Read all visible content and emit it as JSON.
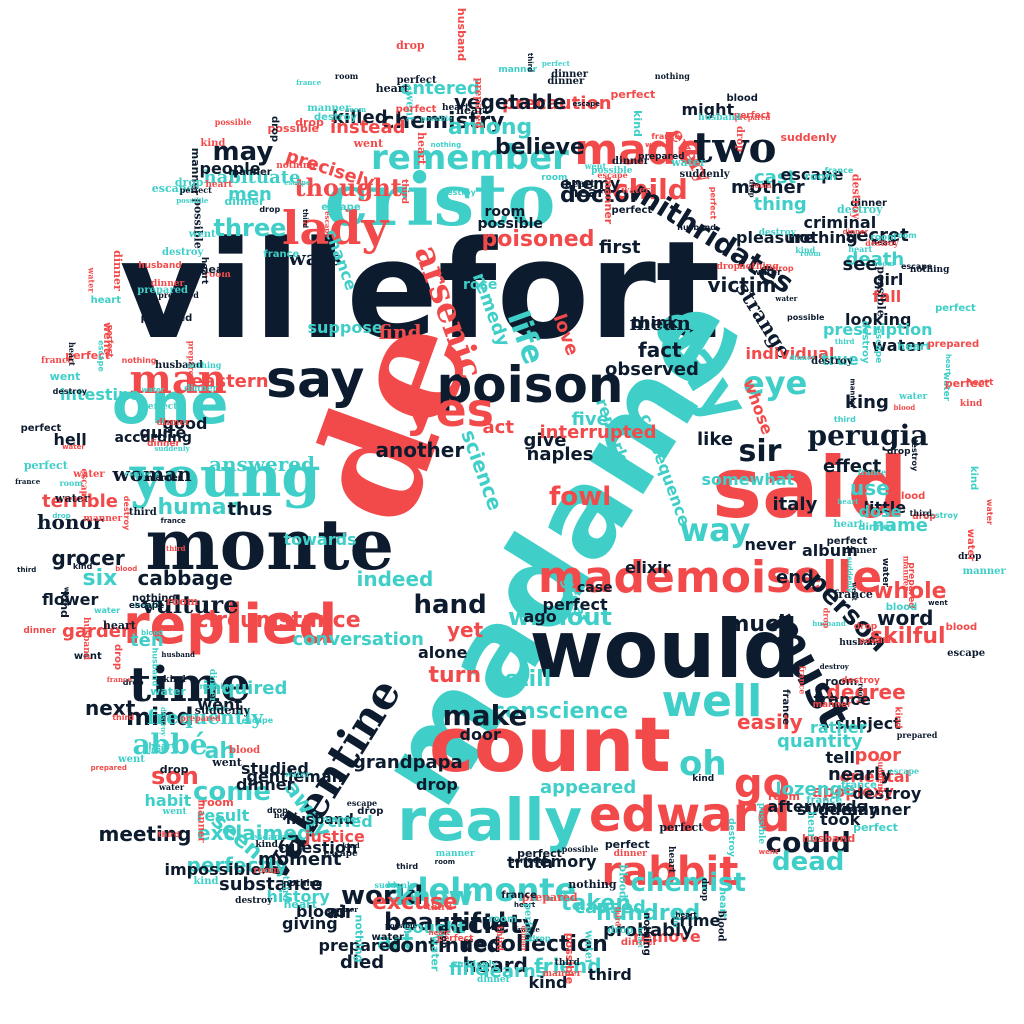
{
  "colors": {
    "navy": "#0d1b2e",
    "red": "#f24a4a",
    "teal": "#3fcfc8"
  },
  "words": [
    "villefort",
    "de",
    "madame",
    "said",
    "would",
    "count",
    "cristo",
    "monte",
    "mademoiselle",
    "replied",
    "young",
    "one",
    "really",
    "edward",
    "valentine",
    "poison",
    "say",
    "man",
    "time",
    "lady",
    "day",
    "yes",
    "well",
    "must",
    "made",
    "remember",
    "two",
    "child",
    "adelmonte",
    "rabbit",
    "go",
    "oh",
    "arsenic",
    "mithridates",
    "thought",
    "poisoned",
    "three",
    "precisely",
    "doctor",
    "chemistry",
    "believe",
    "may",
    "eye",
    "life",
    "perugia",
    "sir",
    "person",
    "way",
    "without",
    "conscience",
    "chemist",
    "could",
    "dead",
    "make",
    "abbé",
    "son",
    "come",
    "ah",
    "mind",
    "next",
    "frequently",
    "inquired",
    "cabbage",
    "vulture",
    "six",
    "honor",
    "grocer",
    "terrible",
    "answered",
    "woman",
    "human",
    "thus",
    "towards",
    "science",
    "fowl",
    "indeed",
    "hand",
    "yet",
    "world",
    "know",
    "taken",
    "society",
    "hundred",
    "beautiful",
    "art",
    "excuse",
    "continued",
    "recollection",
    "heard",
    "friend",
    "learns",
    "fine",
    "word",
    "skilful",
    "whole",
    "much",
    "end",
    "album",
    "king",
    "italy",
    "name",
    "use",
    "fact",
    "might",
    "every",
    "cast",
    "thing",
    "always",
    "mother",
    "victim",
    "death",
    "looking",
    "see",
    "mean",
    "strange",
    "individual",
    "observed",
    "suppose",
    "among",
    "precaution",
    "vegetable",
    "entered",
    "killed",
    "instead",
    "habituate",
    "men",
    "people",
    "think",
    "first",
    "little",
    "true",
    "secret",
    "love",
    "find",
    "remedy",
    "circumstance",
    "chance",
    "remarked",
    "five",
    "easily",
    "still",
    "conversation",
    "seen",
    "perfectly",
    "exclaimed",
    "result",
    "meeting",
    "substance",
    "history",
    "air",
    "moment",
    "away",
    "appeared",
    "truth",
    "memory",
    "quantity",
    "took",
    "tell",
    "subject",
    "degree",
    "poor",
    "oriental",
    "apoplexy",
    "effect",
    "dose",
    "elixir",
    "naples",
    "another",
    "give",
    "act",
    "consequence",
    "interrupted",
    "like",
    "whose",
    "ten",
    "garden",
    "flower",
    "hell",
    "eastern",
    "good",
    "according",
    "quite",
    "intestine",
    "impossible",
    "dinner",
    "studied",
    "went",
    "door",
    "grandpapa",
    "drop",
    "alone",
    "turn",
    "great",
    "case",
    "ago",
    "perfect",
    "caused",
    "remove",
    "crime",
    "probably",
    "kind",
    "died",
    "third",
    "sought",
    "prepared",
    "giving",
    "blood",
    "question",
    "justice",
    "cried",
    "husband",
    "gentleman",
    "habit",
    "lozenge",
    "afterwards",
    "destroy",
    "nearly",
    "suddenly",
    "rather",
    "france",
    "manner",
    "never",
    "somewhat",
    "fall",
    "girl",
    "prescription",
    "water",
    "criminal",
    "pleasure",
    "nothing",
    "escape",
    "enemy",
    "heart",
    "possible",
    "room",
    "rose",
    "history",
    "mitigate"
  ]
}
